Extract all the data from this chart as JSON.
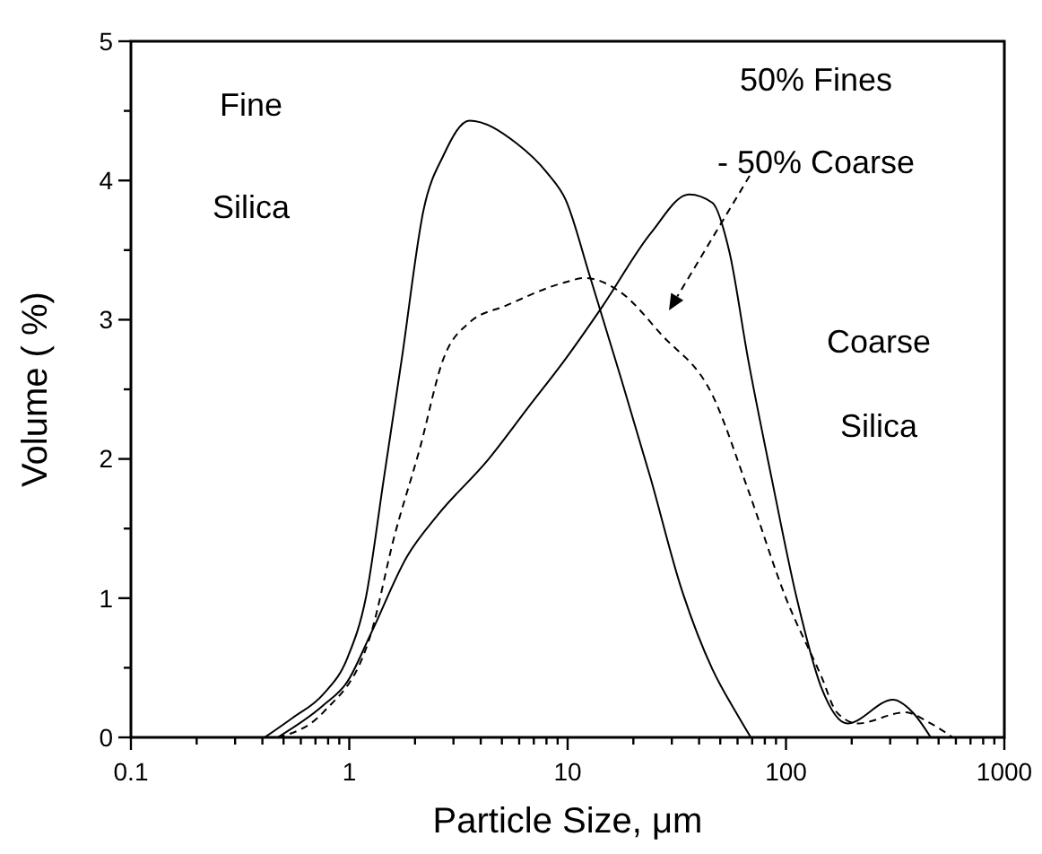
{
  "chart_data": {
    "type": "line",
    "xlabel": "Particle Size, μm",
    "ylabel": "Volume ( %)",
    "log": "x",
    "xlim": [
      0.1,
      1000
    ],
    "ylim": [
      0,
      5
    ],
    "xticks": [
      0.1,
      {
        "value": 0.2,
        "label": null
      },
      {
        "value": 0.3,
        "label": null
      },
      {
        "value": 0.4,
        "label": null
      },
      {
        "value": 0.5,
        "label": null
      },
      {
        "value": 0.6,
        "label": null
      },
      {
        "value": 0.7,
        "label": null
      },
      {
        "value": 0.8,
        "label": null
      },
      {
        "value": 0.9,
        "label": null
      },
      1,
      {
        "value": 2,
        "label": null
      },
      {
        "value": 3,
        "label": null
      },
      {
        "value": 4,
        "label": null
      },
      {
        "value": 5,
        "label": null
      },
      {
        "value": 6,
        "label": null
      },
      {
        "value": 7,
        "label": null
      },
      {
        "value": 8,
        "label": null
      },
      {
        "value": 9,
        "label": null
      },
      10,
      {
        "value": 20,
        "label": null
      },
      {
        "value": 30,
        "label": null
      },
      {
        "value": 40,
        "label": null
      },
      {
        "value": 50,
        "label": null
      },
      {
        "value": 60,
        "label": null
      },
      {
        "value": 70,
        "label": null
      },
      {
        "value": 80,
        "label": null
      },
      {
        "value": 90,
        "label": null
      },
      100,
      {
        "value": 200,
        "label": null
      },
      {
        "value": 300,
        "label": null
      },
      {
        "value": 400,
        "label": null
      },
      {
        "value": 500,
        "label": null
      },
      {
        "value": 600,
        "label": null
      },
      {
        "value": 700,
        "label": null
      },
      {
        "value": 800,
        "label": null
      },
      {
        "value": 900,
        "label": null
      },
      1000
    ],
    "yticks": [
      0,
      {
        "value": 0.5,
        "label": null
      },
      1,
      {
        "value": 1.5,
        "label": null
      },
      2,
      {
        "value": 2.5,
        "label": null
      },
      3,
      {
        "value": 3.5,
        "label": null
      },
      4,
      {
        "value": 4.5,
        "label": null
      },
      5
    ],
    "grid": false,
    "series": [
      {
        "color": "#000000",
        "line_style": "solid",
        "x": [
          0.41,
          0.55,
          0.76,
          0.98,
          1.19,
          1.44,
          1.74,
          2.19,
          2.7,
          3.55,
          5.8,
          8.1,
          9.8,
          12.6,
          17.4,
          24,
          33,
          46,
          59,
          69
        ],
        "values": [
          0,
          0.14,
          0.31,
          0.57,
          1.0,
          1.86,
          2.72,
          3.79,
          4.18,
          4.43,
          4.27,
          4.05,
          3.86,
          3.32,
          2.6,
          1.86,
          1.08,
          0.49,
          0.18,
          0
        ]
      },
      {
        "color": "#000000",
        "line_style": "solid",
        "x": [
          0.47,
          0.76,
          0.98,
          1.26,
          1.84,
          2.55,
          4.3,
          6.6,
          9.8,
          14.5,
          24,
          36,
          46,
          55,
          67,
          86,
          112,
          145,
          191,
          309,
          380,
          460
        ],
        "values": [
          0,
          0.23,
          0.4,
          0.75,
          1.3,
          1.6,
          1.99,
          2.37,
          2.72,
          3.1,
          3.62,
          3.9,
          3.84,
          3.49,
          2.72,
          1.86,
          1.0,
          0.36,
          0.1,
          0.27,
          0.18,
          0
        ]
      },
      {
        "color": "#000000",
        "line_style": "dashed",
        "x": [
          0.47,
          0.76,
          1.26,
          1.6,
          2.1,
          2.7,
          3.55,
          5.2,
          9.8,
          12,
          17.4,
          27,
          46,
          67,
          100,
          145,
          171,
          213,
          350,
          460,
          580
        ],
        "values": [
          0,
          0.18,
          0.75,
          1.43,
          2.07,
          2.72,
          2.98,
          3.1,
          3.27,
          3.3,
          3.2,
          2.89,
          2.46,
          1.78,
          1.0,
          0.44,
          0.18,
          0.1,
          0.18,
          0.1,
          0
        ]
      }
    ],
    "annotations": [
      "Fine",
      "Silica",
      "50% Fines",
      "- 50% Coarse",
      "Coarse",
      "Silica"
    ]
  }
}
